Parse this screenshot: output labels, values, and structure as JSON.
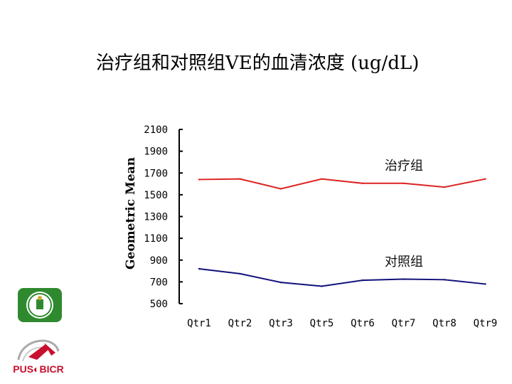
{
  "title": "治疗组和对照组VE的血清浓度 (ug/dL)",
  "logos": {
    "university_seal": "green-university-seal",
    "pus_bicr": "PUS BICR"
  },
  "chart_data": {
    "type": "line",
    "title": "治疗组和对照组VE的血清浓度 (ug/dL)",
    "xlabel": "",
    "ylabel": "Geometric Mean",
    "categories": [
      "Qtr1",
      "Qtr2",
      "Qtr3",
      "Qtr5",
      "Qtr6",
      "Qtr7",
      "Qtr8",
      "Qtr9"
    ],
    "yticks": [
      2100,
      1900,
      1700,
      1500,
      1300,
      1100,
      900,
      700,
      500
    ],
    "ylim": [
      500,
      2100
    ],
    "grid": false,
    "series": [
      {
        "name": "治疗组",
        "color": "#dd2222",
        "values": [
          1640,
          1645,
          1555,
          1645,
          1605,
          1605,
          1570,
          1645
        ]
      },
      {
        "name": "对照组",
        "color": "#11117a",
        "values": [
          820,
          775,
          695,
          660,
          715,
          725,
          720,
          680
        ]
      }
    ]
  }
}
